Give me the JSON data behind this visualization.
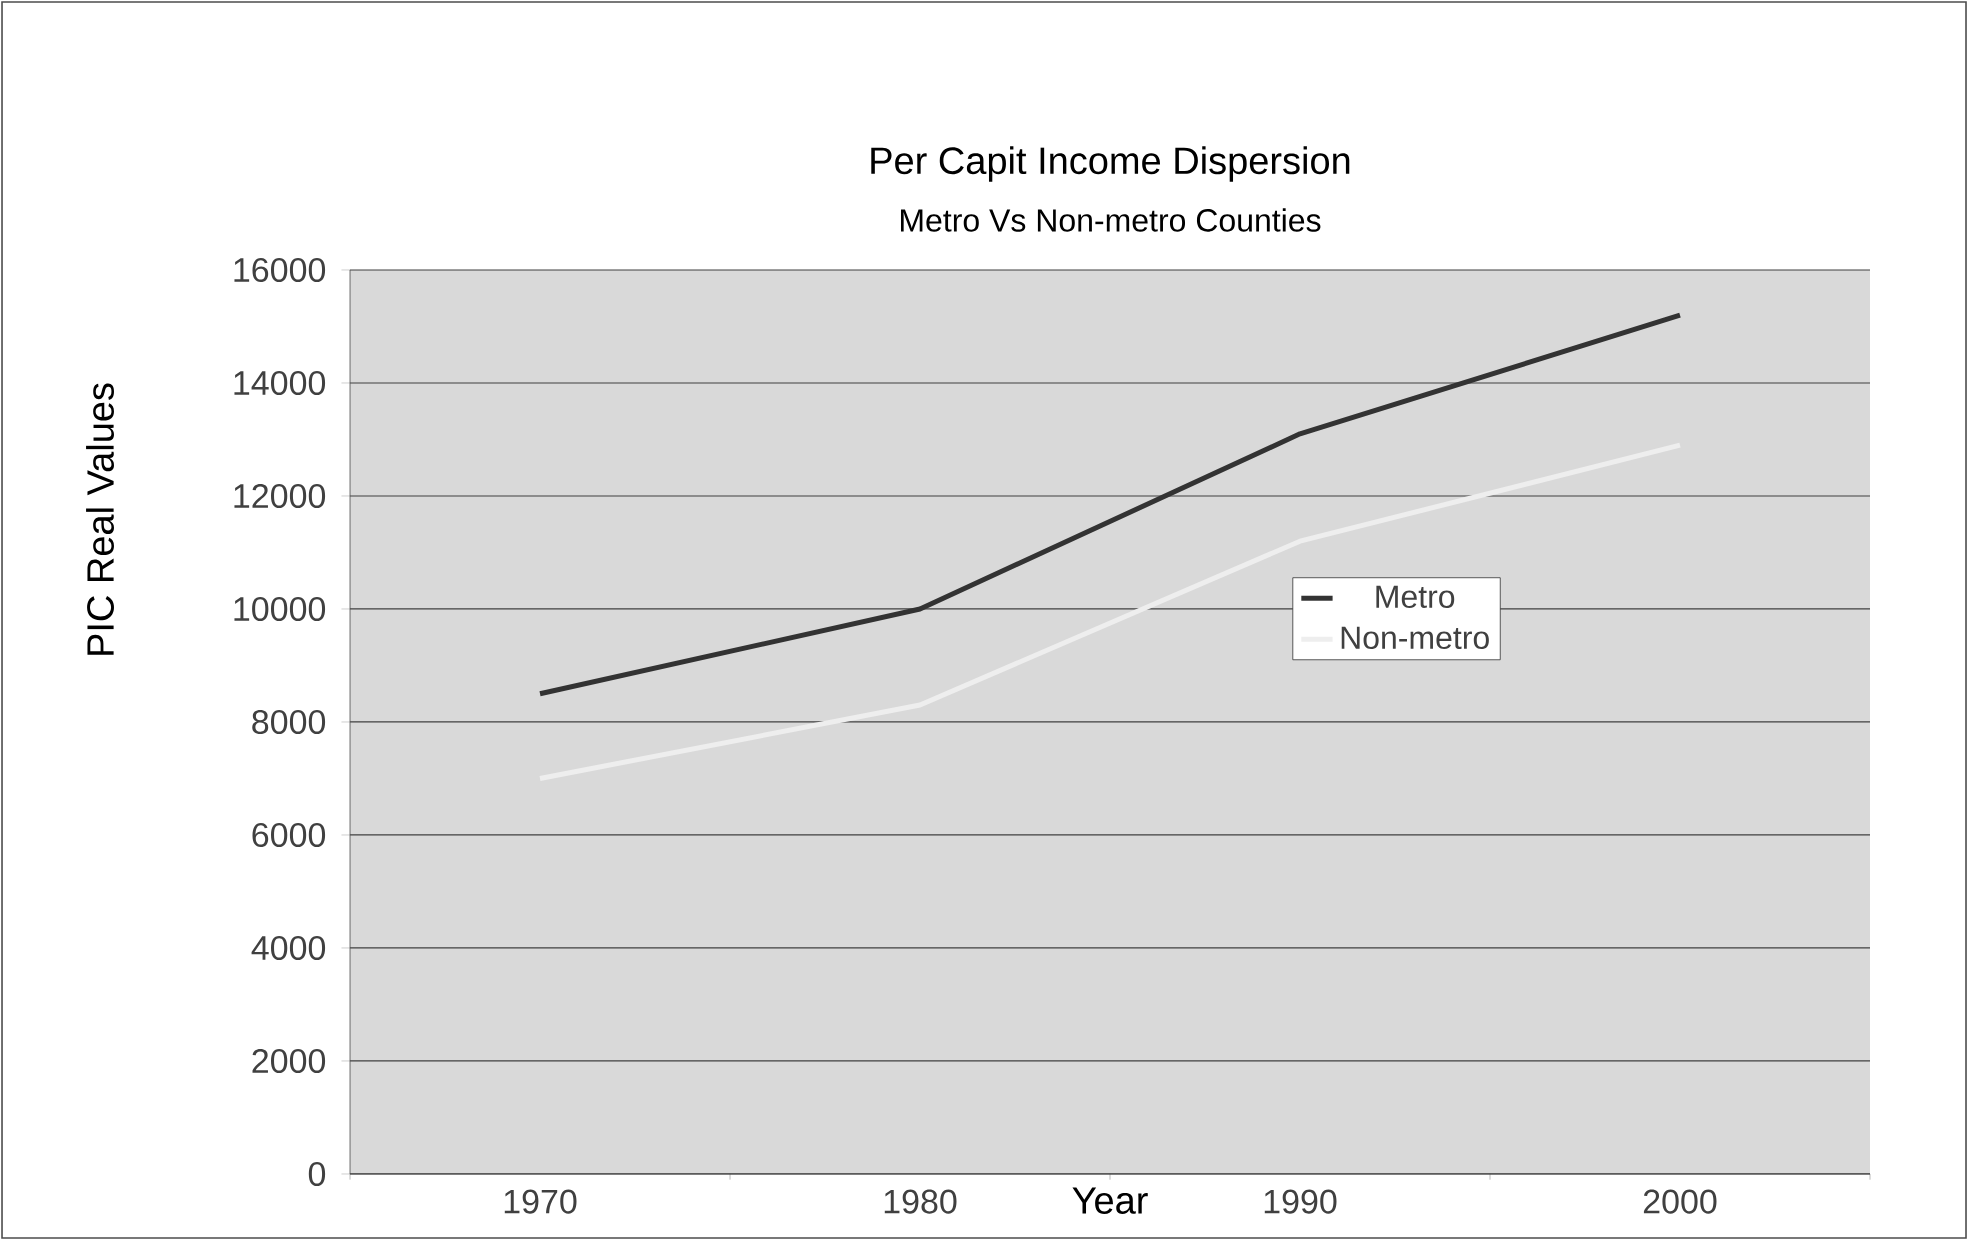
{
  "chart_data": {
    "type": "line",
    "title": "Per Capit Income Dispersion",
    "subtitle": "Metro Vs Non-metro Counties",
    "xlabel": "Year",
    "ylabel": "PIC Real Values",
    "categories": [
      "1970",
      "1980",
      "1990",
      "2000"
    ],
    "series": [
      {
        "name": "Metro",
        "color": "#333333",
        "values": [
          8500,
          10000,
          13100,
          15200
        ]
      },
      {
        "name": "Non-metro",
        "color": "#eeeeee",
        "values": [
          7000,
          8300,
          11200,
          12900
        ]
      }
    ],
    "ylim": [
      0,
      16000
    ],
    "yticks": [
      0,
      2000,
      4000,
      6000,
      8000,
      10000,
      12000,
      14000,
      16000
    ],
    "grid": "y",
    "legend": "right",
    "marker": "none",
    "line_style": "solid"
  }
}
